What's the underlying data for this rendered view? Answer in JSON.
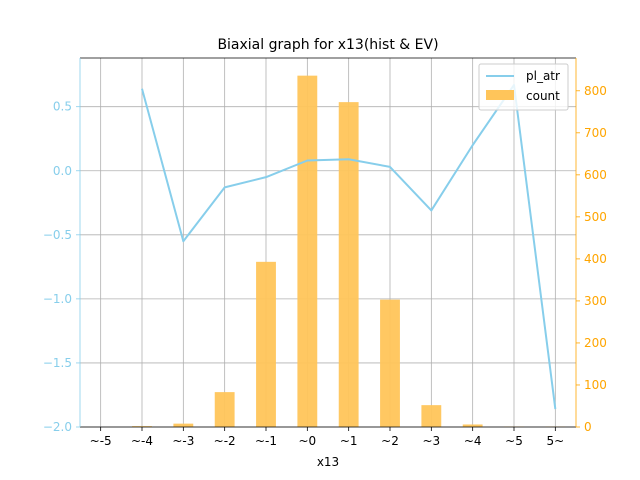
{
  "chart_data": {
    "type": "bar",
    "title": "Biaxial graph for x13(hist & EV)",
    "xlabel": "x13",
    "categories": [
      "~-5",
      "~-4",
      "~-3",
      "~-2",
      "~-1",
      "~0",
      "~1",
      "~2",
      "~3",
      "~4",
      "~5",
      "5~"
    ],
    "series": [
      {
        "name": "count",
        "type": "bar",
        "axis": "right",
        "color": "#FFC55A",
        "values": [
          0,
          2,
          8,
          83,
          393,
          836,
          773,
          303,
          52,
          6,
          1,
          1
        ]
      },
      {
        "name": "pl_atr",
        "type": "line",
        "axis": "left",
        "color": "#87CEEB",
        "values": [
          null,
          0.64,
          -0.55,
          -0.13,
          -0.05,
          0.08,
          0.09,
          0.03,
          -0.31,
          0.2,
          0.67,
          -1.86
        ]
      }
    ],
    "y_left": {
      "lim": [
        -2.0,
        0.88
      ],
      "ticks": [
        -2.0,
        -1.5,
        -1.0,
        -0.5,
        0.0,
        0.5
      ],
      "tick_labels": [
        "−2.0",
        "−1.5",
        "−1.0",
        "−0.5",
        "0.0",
        "0.5"
      ],
      "color": "#87CEEB"
    },
    "y_right": {
      "lim": [
        0,
        878
      ],
      "ticks": [
        0,
        100,
        200,
        300,
        400,
        500,
        600,
        700,
        800
      ],
      "tick_labels": [
        "0",
        "100",
        "200",
        "300",
        "400",
        "500",
        "600",
        "700",
        "800"
      ],
      "color": "#FFA500"
    },
    "grid": true,
    "legend": {
      "position": "top-right",
      "entries": [
        "pl_atr",
        "count"
      ]
    }
  }
}
